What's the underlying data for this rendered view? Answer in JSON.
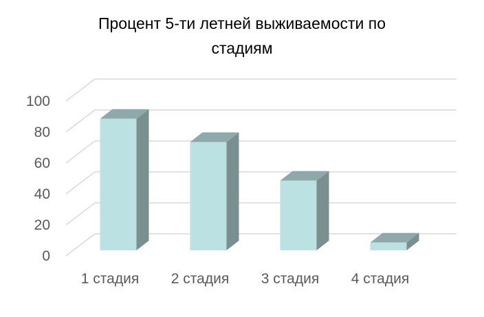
{
  "chart_data": {
    "type": "bar",
    "title": "Процент 5-ти летней выживаемости по стадиям",
    "categories": [
      "1 стадия",
      "2 стадия",
      "3 стадия",
      "4 стадия"
    ],
    "values": [
      85,
      70,
      45,
      5
    ],
    "ylim": [
      0,
      100
    ],
    "yticks": [
      0,
      20,
      40,
      60,
      80,
      100
    ],
    "xlabel": "",
    "ylabel": "",
    "grid": true,
    "legend": "none",
    "three_d": true,
    "colors": {
      "bar_front": "#BCE1E3",
      "bar_side": "#7A8F90",
      "bar_top": "#8FA8A9",
      "grid": "#D9D9D9",
      "text": "#595959"
    }
  }
}
